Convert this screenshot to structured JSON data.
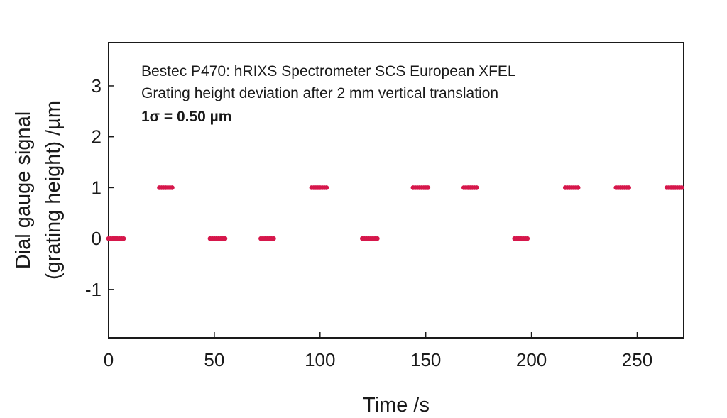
{
  "chart_data": {
    "type": "scatter",
    "title": "",
    "annotations": [
      "Bestec P470: hRIXS Spectrometer SCS European XFEL",
      "Grating height deviation after 2 mm vertical translation",
      "1σ = 0.50 µm"
    ],
    "xlabel": "Time /s",
    "ylabel": [
      "Dial gauge signal",
      "(grating height) /µm"
    ],
    "xlim": [
      0,
      272
    ],
    "ylim": [
      -1.95,
      3.85
    ],
    "xticks": [
      0,
      50,
      100,
      150,
      200,
      250
    ],
    "yticks": [
      -1,
      0,
      1,
      2,
      3
    ],
    "grid": false,
    "marker_color": "#d6174b",
    "series": [
      {
        "segments": [
          {
            "x": [
              0,
              8
            ],
            "y": 0
          },
          {
            "x": [
              24,
              31
            ],
            "y": 1
          },
          {
            "x": [
              48,
              56
            ],
            "y": 0
          },
          {
            "x": [
              72,
              79
            ],
            "y": 0
          },
          {
            "x": [
              96,
              104
            ],
            "y": 1
          },
          {
            "x": [
              120,
              128
            ],
            "y": 0
          },
          {
            "x": [
              144,
              152
            ],
            "y": 1
          },
          {
            "x": [
              168,
              175
            ],
            "y": 1
          },
          {
            "x": [
              192,
              199
            ],
            "y": 0
          },
          {
            "x": [
              216,
              223
            ],
            "y": 1
          },
          {
            "x": [
              240,
              247
            ],
            "y": 1
          },
          {
            "x": [
              264,
              272
            ],
            "y": 1
          }
        ]
      }
    ]
  }
}
